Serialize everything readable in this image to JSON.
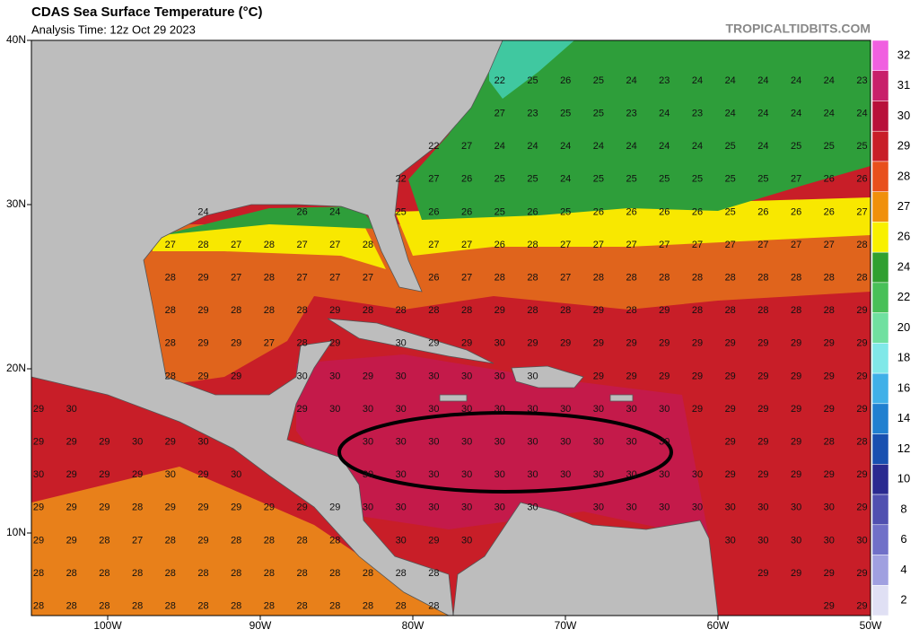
{
  "header": {
    "title": "CDAS Sea Surface Temperature (°C)",
    "subtitle": "Analysis Time: 12z Oct 29 2023",
    "credit": "TROPICALTIDBITS.COM"
  },
  "map": {
    "lat_labels": [
      "40N",
      "30N",
      "20N",
      "10N"
    ],
    "lon_labels": [
      "100W",
      "90W",
      "80W",
      "70W",
      "60W",
      "50W"
    ],
    "grid": [
      [
        null,
        null,
        null,
        null,
        null,
        null,
        null,
        null,
        null,
        null,
        null,
        null,
        null,
        null,
        22,
        25,
        26,
        25,
        24,
        23,
        24,
        24,
        24,
        24,
        24,
        23
      ],
      [
        null,
        null,
        null,
        null,
        null,
        null,
        null,
        null,
        null,
        null,
        null,
        null,
        null,
        null,
        27,
        23,
        25,
        25,
        23,
        24,
        23,
        24,
        24,
        24,
        24,
        24
      ],
      [
        null,
        null,
        null,
        null,
        null,
        null,
        null,
        null,
        null,
        null,
        null,
        null,
        22,
        27,
        24,
        24,
        24,
        24,
        24,
        24,
        24,
        25,
        24,
        25,
        25,
        25
      ],
      [
        null,
        null,
        null,
        null,
        null,
        null,
        null,
        null,
        null,
        null,
        null,
        22,
        27,
        26,
        25,
        25,
        24,
        25,
        25,
        25,
        25,
        25,
        25,
        27,
        26,
        26
      ],
      [
        null,
        null,
        null,
        null,
        null,
        24,
        null,
        null,
        26,
        24,
        null,
        25,
        26,
        26,
        25,
        26,
        25,
        26,
        26,
        26,
        26,
        25,
        26,
        26,
        26,
        27
      ],
      [
        null,
        null,
        null,
        null,
        27,
        28,
        27,
        28,
        27,
        27,
        28,
        null,
        27,
        27,
        26,
        28,
        27,
        27,
        27,
        27,
        27,
        27,
        27,
        27,
        27,
        28
      ],
      [
        null,
        null,
        null,
        null,
        28,
        29,
        27,
        28,
        27,
        27,
        27,
        null,
        26,
        27,
        28,
        28,
        27,
        28,
        28,
        28,
        28,
        28,
        28,
        28,
        28,
        28
      ],
      [
        null,
        null,
        null,
        null,
        28,
        29,
        28,
        28,
        28,
        29,
        28,
        28,
        28,
        28,
        29,
        28,
        28,
        29,
        28,
        29,
        28,
        28,
        28,
        28,
        28,
        29
      ],
      [
        null,
        null,
        null,
        null,
        28,
        29,
        29,
        27,
        28,
        29,
        null,
        30,
        29,
        29,
        30,
        29,
        29,
        29,
        29,
        29,
        29,
        29,
        29,
        29,
        29,
        29
      ],
      [
        null,
        null,
        null,
        null,
        28,
        29,
        29,
        null,
        30,
        30,
        29,
        30,
        30,
        30,
        30,
        30,
        null,
        29,
        29,
        29,
        29,
        29,
        29,
        29,
        29,
        29
      ],
      [
        29,
        30,
        null,
        null,
        null,
        null,
        null,
        null,
        29,
        30,
        30,
        30,
        30,
        30,
        30,
        30,
        30,
        30,
        30,
        30,
        29,
        29,
        29,
        29,
        29,
        29
      ],
      [
        29,
        29,
        29,
        30,
        29,
        30,
        null,
        null,
        null,
        null,
        30,
        30,
        30,
        30,
        30,
        30,
        30,
        30,
        30,
        30,
        null,
        29,
        29,
        29,
        28,
        28
      ],
      [
        30,
        29,
        29,
        29,
        30,
        29,
        30,
        null,
        null,
        null,
        30,
        30,
        30,
        30,
        30,
        30,
        30,
        30,
        30,
        30,
        30,
        29,
        29,
        29,
        29,
        29
      ],
      [
        29,
        29,
        29,
        28,
        29,
        29,
        29,
        29,
        29,
        29,
        30,
        30,
        30,
        30,
        30,
        30,
        null,
        30,
        30,
        30,
        30,
        30,
        30,
        30,
        30,
        29
      ],
      [
        29,
        29,
        28,
        27,
        28,
        29,
        28,
        28,
        28,
        28,
        null,
        30,
        29,
        30,
        null,
        null,
        null,
        null,
        null,
        null,
        null,
        30,
        30,
        30,
        30,
        30
      ],
      [
        28,
        28,
        28,
        28,
        28,
        28,
        28,
        28,
        28,
        28,
        28,
        28,
        28,
        null,
        null,
        null,
        null,
        null,
        null,
        null,
        null,
        null,
        29,
        29,
        29,
        29
      ],
      [
        28,
        28,
        28,
        28,
        28,
        28,
        28,
        28,
        28,
        28,
        28,
        28,
        28,
        null,
        null,
        null,
        null,
        null,
        null,
        null,
        null,
        null,
        null,
        null,
        29,
        29
      ]
    ]
  },
  "colorbar": {
    "ticks": [
      32,
      31,
      30,
      29,
      28,
      27,
      26,
      24,
      22,
      20,
      18,
      16,
      14,
      12,
      10,
      8,
      6,
      4,
      2
    ],
    "colors": [
      "#f060e0",
      "#c8206a",
      "#b8103a",
      "#c81e28",
      "#e8501c",
      "#f0900c",
      "#f8f000",
      "#30a030",
      "#48c058",
      "#70e0a0",
      "#80e8e8",
      "#40b0e8",
      "#2080d0",
      "#1850b0",
      "#2a2a90",
      "#5050b0",
      "#7070c8",
      "#a0a0e0",
      "#e0e0f4"
    ]
  }
}
